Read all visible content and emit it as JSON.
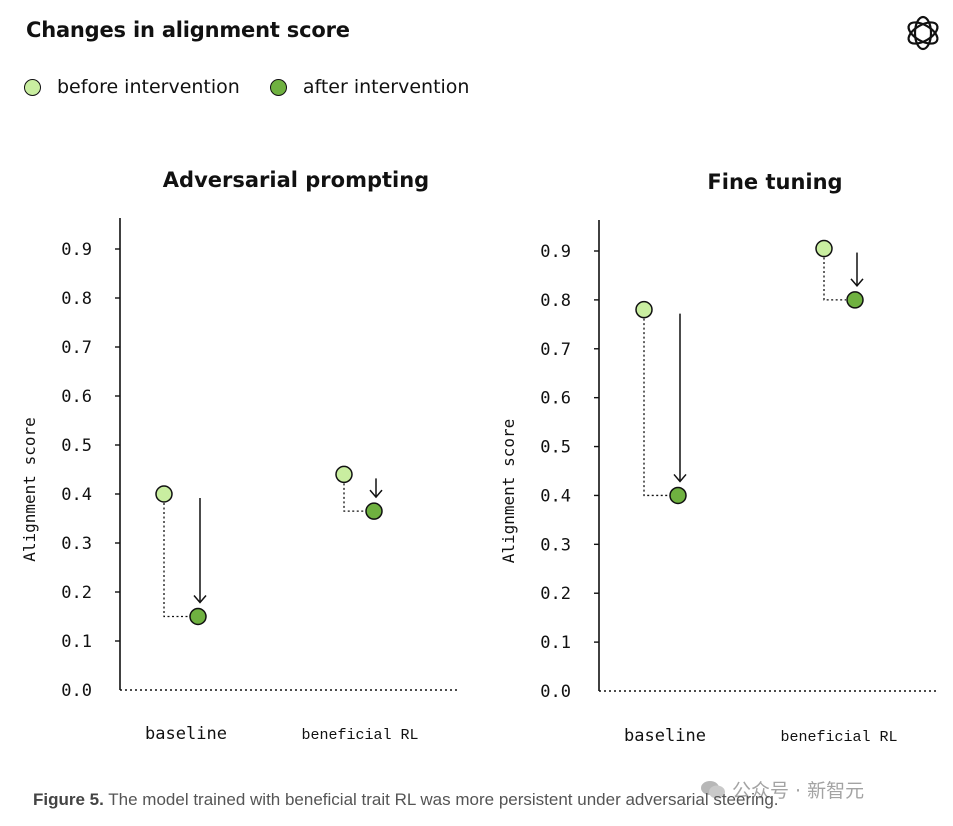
{
  "title": "Changes in alignment score",
  "legend": {
    "before": "before intervention",
    "after": "after intervention"
  },
  "colors": {
    "before": "#c9eea0",
    "after": "#6fb140",
    "stroke": "#111111"
  },
  "caption": {
    "label": "Figure 5.",
    "text": " The model trained with beneficial trait RL was more persistent under adversarial steering."
  },
  "watermark": "公众号 · 新智元",
  "logo_icon": "openai-logo-icon",
  "chart_data": [
    {
      "type": "scatter",
      "title": "Adversarial prompting",
      "ylabel": "Alignment score",
      "categories": [
        "baseline",
        "beneficial RL"
      ],
      "yticks": [
        "0.0",
        "0.1",
        "0.2",
        "0.3",
        "0.4",
        "0.5",
        "0.6",
        "0.7",
        "0.8",
        "0.9"
      ],
      "ylim": [
        0,
        0.95
      ],
      "series": [
        {
          "name": "before intervention",
          "values": [
            0.4,
            0.44
          ]
        },
        {
          "name": "after intervention",
          "values": [
            0.15,
            0.365
          ]
        }
      ]
    },
    {
      "type": "scatter",
      "title": "Fine tuning",
      "ylabel": "Alignment score",
      "categories": [
        "baseline",
        "beneficial RL"
      ],
      "yticks": [
        "0.0",
        "0.1",
        "0.2",
        "0.3",
        "0.4",
        "0.5",
        "0.6",
        "0.7",
        "0.8",
        "0.9"
      ],
      "ylim": [
        0,
        0.95
      ],
      "series": [
        {
          "name": "before intervention",
          "values": [
            0.78,
            0.905
          ]
        },
        {
          "name": "after intervention",
          "values": [
            0.4,
            0.8
          ]
        }
      ]
    }
  ]
}
